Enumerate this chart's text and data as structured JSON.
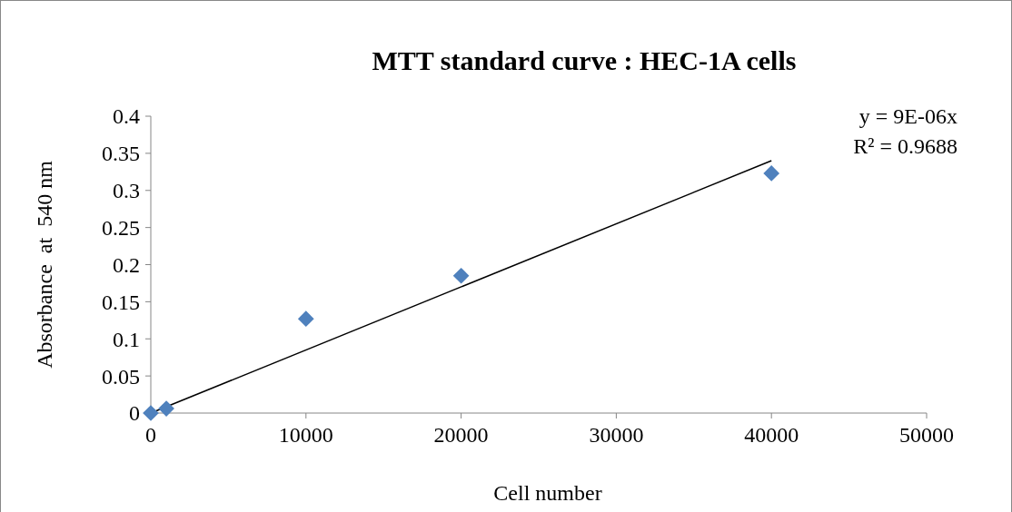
{
  "chart_data": {
    "type": "scatter",
    "title": "MTT standard curve : HEC-1A cells",
    "xlabel": "Cell number",
    "ylabel": "Absorbance  at  540 nm",
    "series": [
      {
        "color": "#4f81bd",
        "x": [
          0,
          1000,
          10000,
          20000,
          40000
        ],
        "values": [
          0,
          0.006,
          0.127,
          0.185,
          0.323
        ],
        "marker": "diamond"
      },
      {
        "type": "line",
        "color": "#000000",
        "x": [
          0,
          40000
        ],
        "values": [
          0,
          0.34
        ],
        "marker": "none",
        "line_style": "solid"
      }
    ],
    "xlim": [
      0,
      50000
    ],
    "xticks": [
      0,
      10000,
      20000,
      30000,
      40000,
      50000
    ],
    "ylim": [
      0,
      0.4
    ],
    "yticks": [
      0,
      0.05,
      0.1,
      0.15,
      0.2,
      0.25,
      0.3,
      0.35,
      0.4
    ],
    "annotations": [
      "y = 9E-06x",
      "R² = 0.9688"
    ],
    "grid": false
  }
}
